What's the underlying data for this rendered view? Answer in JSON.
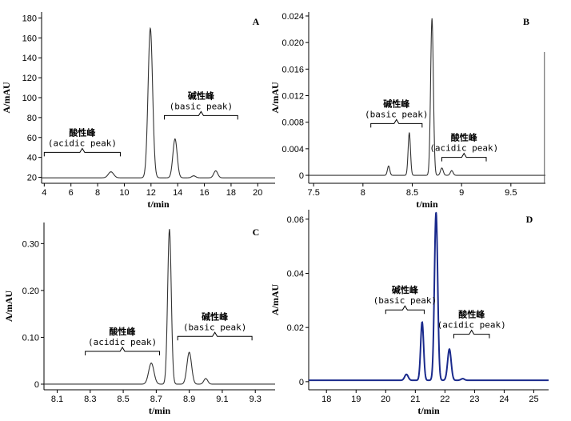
{
  "chart_data": [
    {
      "panel_label": "A",
      "type": "line",
      "xlabel": "t/min",
      "ylabel": "A/mAU",
      "xlim": [
        3.8,
        21.3
      ],
      "ylim": [
        14,
        186
      ],
      "xticks": [
        4,
        6,
        8,
        10,
        12,
        14,
        16,
        18,
        20
      ],
      "yticks": [
        20,
        40,
        60,
        80,
        100,
        120,
        140,
        160,
        180
      ],
      "line_color": "#333333",
      "baseline": 19.5,
      "baseline_slope": 0.15,
      "baseline_x0": 8,
      "peaks": [
        {
          "x": 9.0,
          "h": 6,
          "w": 0.2
        },
        {
          "x": 11.95,
          "h": 150,
          "w": 0.17
        },
        {
          "x": 13.8,
          "h": 39,
          "w": 0.16
        },
        {
          "x": 15.2,
          "h": 2,
          "w": 0.15
        },
        {
          "x": 16.85,
          "h": 7,
          "w": 0.15
        }
      ],
      "annotations": [
        {
          "cn": "酸性峰",
          "en": "(acidic peak)",
          "bracket_x": [
            4.0,
            9.7
          ],
          "y_data": 45
        },
        {
          "cn": "碱性峰",
          "en": "(basic peak)",
          "bracket_x": [
            13.0,
            18.5
          ],
          "y_data": 82
        }
      ]
    },
    {
      "panel_label": "B",
      "type": "line",
      "xlabel": "t/min",
      "ylabel": "A/mAU",
      "xlim": [
        7.45,
        9.85
      ],
      "ylim": [
        -0.0012,
        0.0246
      ],
      "xticks": [
        7.5,
        8.0,
        8.5,
        9.0,
        9.5
      ],
      "xtick_labels": [
        "7.5",
        "8",
        "8.5",
        "9",
        "9.5"
      ],
      "yticks": [
        0,
        0.004,
        0.008,
        0.012,
        0.016,
        0.02,
        0.024
      ],
      "ytick_labels": [
        "0",
        "0.004",
        "0.008",
        "0.012",
        "0.016",
        "0.020",
        "0.024"
      ],
      "line_color": "#333333",
      "baseline": 0.0,
      "peaks": [
        {
          "x": 8.26,
          "h": 0.0014,
          "w": 0.012
        },
        {
          "x": 8.47,
          "h": 0.0064,
          "w": 0.012
        },
        {
          "x": 8.7,
          "h": 0.0236,
          "w": 0.014
        },
        {
          "x": 8.8,
          "h": 0.0011,
          "w": 0.014
        },
        {
          "x": 8.9,
          "h": 0.0007,
          "w": 0.014
        }
      ],
      "edge_line_x": 9.84,
      "annotations": [
        {
          "cn": "碱性峰",
          "en": "(basic peak)",
          "bracket_x": [
            8.08,
            8.6
          ],
          "y_data": 0.0078
        },
        {
          "cn": "酸性峰",
          "en": "(acidic peak)",
          "bracket_x": [
            8.8,
            9.25
          ],
          "y_data": 0.0027
        }
      ]
    },
    {
      "panel_label": "C",
      "type": "line",
      "xlabel": "t/min",
      "ylabel": "A/mAU",
      "xlim": [
        8.02,
        9.42
      ],
      "ylim": [
        -0.012,
        0.345
      ],
      "xticks": [
        8.1,
        8.3,
        8.5,
        8.7,
        8.9,
        9.1,
        9.3
      ],
      "yticks": [
        0,
        0.1,
        0.2,
        0.3
      ],
      "ytick_labels": [
        "0",
        "0.10",
        "0.20",
        "0.30"
      ],
      "line_color": "#333333",
      "baseline": 0.0,
      "peaks": [
        {
          "x": 8.67,
          "h": 0.045,
          "w": 0.016
        },
        {
          "x": 8.78,
          "h": 0.33,
          "w": 0.011
        },
        {
          "x": 8.9,
          "h": 0.068,
          "w": 0.014
        },
        {
          "x": 9.0,
          "h": 0.012,
          "w": 0.012
        }
      ],
      "annotations": [
        {
          "cn": "酸性峰",
          "en": "(acidic peak)",
          "bracket_x": [
            8.27,
            8.72
          ],
          "y_data": 0.07
        },
        {
          "cn": "碱性峰",
          "en": "(basic peak)",
          "bracket_x": [
            8.83,
            9.28
          ],
          "y_data": 0.102
        }
      ]
    },
    {
      "panel_label": "D",
      "type": "line",
      "xlabel": "t/min",
      "ylabel": "A/mAU",
      "xlim": [
        17.4,
        25.5
      ],
      "ylim": [
        -0.003,
        0.0635
      ],
      "xticks": [
        18,
        19,
        20,
        21,
        22,
        23,
        24,
        25
      ],
      "yticks": [
        0,
        0.02,
        0.04,
        0.06
      ],
      "line_color": "#1a2a8c",
      "baseline": 0.0005,
      "peaks": [
        {
          "x": 20.7,
          "h": 0.0022,
          "w": 0.06
        },
        {
          "x": 21.23,
          "h": 0.0215,
          "w": 0.05
        },
        {
          "x": 21.7,
          "h": 0.062,
          "w": 0.055
        },
        {
          "x": 22.15,
          "h": 0.0115,
          "w": 0.06
        },
        {
          "x": 22.6,
          "h": 0.0006,
          "w": 0.06
        }
      ],
      "annotations": [
        {
          "cn": "碱性峰",
          "en": "(basic peak)",
          "bracket_x": [
            20.0,
            21.3
          ],
          "y_data": 0.0265
        },
        {
          "cn": "酸性峰",
          "en": "(acidic peak)",
          "bracket_x": [
            22.3,
            23.5
          ],
          "y_data": 0.0175
        }
      ]
    }
  ]
}
